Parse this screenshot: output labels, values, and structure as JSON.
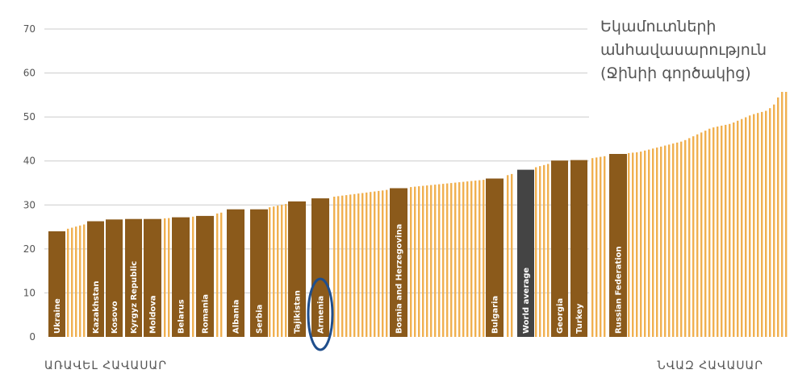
{
  "chart_data": {
    "type": "bar",
    "title_lines": [
      "Եկամուտների",
      "անհավասարություն",
      "(Ջինիի գործակից)"
    ],
    "xlabel_left": "ԱՌԱՎԵԼ ՀԱՎԱՍԱՐ",
    "xlabel_right": "ՆՎԱԶ ՀԱՎԱՍԱՐ",
    "ylim": [
      0,
      70
    ],
    "yticks": [
      0,
      10,
      20,
      30,
      40,
      50,
      60,
      70
    ],
    "grid": true,
    "colors": {
      "bar_default": "#F0B050",
      "bar_highlight": "#8B5A1B",
      "bar_world_average": "#444444",
      "grid": "#cccccc",
      "circle": "#1F4E8C"
    },
    "highlighted": [
      {
        "label": "Ukraine",
        "value": 24.0
      },
      {
        "label": "Kazakhstan",
        "value": 26.3
      },
      {
        "label": "Kosovo",
        "value": 26.7
      },
      {
        "label": "Kyrgyz Republic",
        "value": 26.8
      },
      {
        "label": "Moldova",
        "value": 26.8
      },
      {
        "label": "Belarus",
        "value": 27.2
      },
      {
        "label": "Romania",
        "value": 27.5
      },
      {
        "label": "Albania",
        "value": 29.0
      },
      {
        "label": "Serbia",
        "value": 29.0
      },
      {
        "label": "Tajikistan",
        "value": 30.8
      },
      {
        "label": "Armenia",
        "value": 31.5
      },
      {
        "label": "Bosnia and Herzegovina",
        "value": 33.8
      },
      {
        "label": "Bulgaria",
        "value": 36.0
      },
      {
        "label": "World average",
        "value": 38.0
      },
      {
        "label": "Georgia",
        "value": 40.1
      },
      {
        "label": "Turkey",
        "value": 40.2
      },
      {
        "label": "Russian Federation",
        "value": 41.6
      }
    ],
    "circled": "Armenia"
  }
}
